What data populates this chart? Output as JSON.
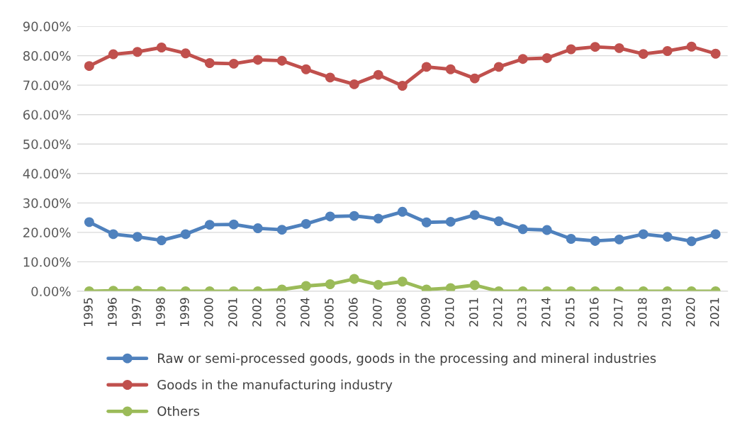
{
  "chart_data": {
    "type": "line",
    "categories": [
      "1995",
      "1996",
      "1997",
      "1998",
      "1999",
      "2000",
      "2001",
      "2002",
      "2003",
      "2004",
      "2005",
      "2006",
      "2007",
      "2008",
      "2009",
      "2010",
      "2011",
      "2012",
      "2013",
      "2014",
      "2015",
      "2016",
      "2017",
      "2018",
      "2019",
      "2020",
      "2021"
    ],
    "series": [
      {
        "name": "Raw or semi-processed goods, goods in the processing and mineral industries",
        "color": "#4f81bd",
        "values": [
          23.5,
          19.4,
          18.5,
          17.3,
          19.4,
          22.6,
          22.7,
          21.4,
          20.9,
          22.9,
          25.4,
          25.6,
          24.7,
          27.0,
          23.4,
          23.6,
          25.9,
          23.8,
          21.1,
          20.8,
          17.8,
          17.1,
          17.6,
          19.4,
          18.5,
          17.0,
          19.4
        ]
      },
      {
        "name": "Goods in the manufacturing industry",
        "color": "#c0504d",
        "values": [
          76.5,
          80.5,
          81.3,
          82.8,
          80.8,
          77.5,
          77.3,
          78.6,
          78.3,
          75.4,
          72.6,
          70.3,
          73.5,
          69.8,
          76.2,
          75.4,
          72.3,
          76.2,
          78.9,
          79.2,
          82.2,
          83.0,
          82.6,
          80.6,
          81.6,
          83.1,
          80.7
        ]
      },
      {
        "name": "Others",
        "color": "#9bbb59",
        "values": [
          0,
          0.2,
          0.2,
          0,
          0,
          0,
          0,
          0,
          0.6,
          1.8,
          2.4,
          4.2,
          2.2,
          3.3,
          0.6,
          1.1,
          2.1,
          0,
          0,
          0,
          0,
          0,
          0,
          0,
          0,
          0,
          0
        ]
      }
    ],
    "ylim": [
      0,
      90
    ],
    "yticks": [
      {
        "value": 0,
        "label": "0.00%"
      },
      {
        "value": 10,
        "label": "10.00%"
      },
      {
        "value": 20,
        "label": "20.00%"
      },
      {
        "value": 30,
        "label": "30.00%"
      },
      {
        "value": 40,
        "label": "40.00%"
      },
      {
        "value": 50,
        "label": "50.00%"
      },
      {
        "value": 60,
        "label": "60.00%"
      },
      {
        "value": 70,
        "label": "70.00%"
      },
      {
        "value": 80,
        "label": "80.00%"
      },
      {
        "value": 90,
        "label": "90.00%"
      }
    ],
    "grid": "y",
    "legend": "bottom",
    "marker": "circle",
    "line_style": "solid"
  }
}
